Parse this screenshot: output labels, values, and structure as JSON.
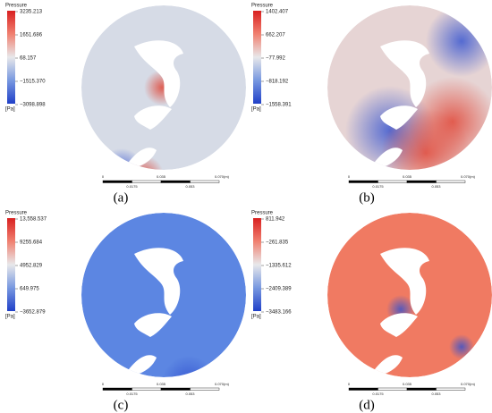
{
  "legend_title": "Pressure",
  "unit": "[Pa]",
  "scale_bar": {
    "top": [
      "0",
      "0.035",
      "0.070",
      "(m)"
    ],
    "bottom": [
      "0.0175",
      "0.053"
    ]
  },
  "panels": [
    {
      "ticks": [
        "3235.213",
        "1651.686",
        "68.157",
        "−1515.370",
        "−3098.898"
      ],
      "caption": "(a)"
    },
    {
      "ticks": [
        "1402.407",
        "662.207",
        "−77.992",
        "−818.192",
        "−1558.391"
      ],
      "caption": "(b)"
    },
    {
      "ticks": [
        "13,558.537",
        "9255.684",
        "4952.829",
        "649.975",
        "−3652.879"
      ],
      "caption": "(c)"
    },
    {
      "ticks": [
        "811.942",
        "−261.835",
        "−1335.612",
        "−2409.389",
        "−3483.166"
      ],
      "caption": "(d)"
    }
  ]
}
